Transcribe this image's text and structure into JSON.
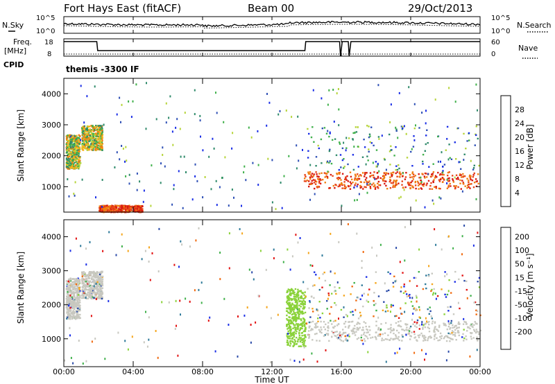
{
  "header": {
    "station": "Fort Hays East (fitACF)",
    "beam": "Beam 00",
    "date": "29/Oct/2013"
  },
  "noise_panel": {
    "left_label": "N.Sky",
    "right_label": "N.Search",
    "y_ticks": [
      "10^5",
      "10^0"
    ]
  },
  "freq_panel": {
    "left_label_1": "Freq.",
    "left_label_2": "[MHz]",
    "right_label": "Nave",
    "left_ticks": [
      "18",
      "8"
    ],
    "right_ticks": [
      "60",
      "0"
    ],
    "cpid_label": "CPID",
    "cpid_value": "themis -3300 IF"
  },
  "colors": {
    "power_scale": [
      "#1a2ee6",
      "#2e4fb5",
      "#2f8a6a",
      "#3fb04a",
      "#b6d43a",
      "#f5b51a",
      "#f07f12",
      "#e8471a",
      "#d81a12"
    ],
    "velocity_scale": [
      "#e21212",
      "#f06a10",
      "#f5a51a",
      "#8ad23a",
      "#c8c8c0",
      "#c8c8c0",
      "#3fb04a",
      "#2e7a9a",
      "#2a4aa8",
      "#1a2ee6"
    ]
  },
  "chart_data": [
    {
      "type": "heatmap",
      "name": "power",
      "ylabel": "Slant Range [km]",
      "xlabel": "",
      "x_ticks": [
        "00:00",
        "04:00",
        "08:00",
        "12:00",
        "16:00",
        "20:00",
        "00:00"
      ],
      "y_ticks": [
        1000,
        2000,
        3000,
        4000
      ],
      "ylim": [
        180,
        4500
      ],
      "colorbar_label": "Power [dB]",
      "colorbar_ticks": [
        4,
        8,
        12,
        16,
        20,
        24,
        28
      ],
      "regions": [
        {
          "t0": 0.1,
          "t1": 0.9,
          "r0": 1600,
          "r1": 2700,
          "level": "mid"
        },
        {
          "t0": 1.0,
          "t1": 2.2,
          "r0": 2200,
          "r1": 3000,
          "level": "mid"
        },
        {
          "t0": 2.0,
          "t1": 4.5,
          "r0": 200,
          "r1": 420,
          "level": "high"
        },
        {
          "t0": 13.8,
          "t1": 24.0,
          "r0": 950,
          "r1": 1500,
          "level": "high"
        },
        {
          "t0": 14.0,
          "t1": 24.0,
          "r0": 1500,
          "r1": 3000,
          "level": "scatter"
        }
      ]
    },
    {
      "type": "heatmap",
      "name": "velocity",
      "ylabel": "Slant Range [km]",
      "xlabel": "Time UT",
      "x_ticks": [
        "00:00",
        "04:00",
        "08:00",
        "12:00",
        "16:00",
        "20:00",
        "00:00"
      ],
      "y_ticks": [
        1000,
        2000,
        3000,
        4000
      ],
      "ylim": [
        180,
        4500
      ],
      "colorbar_label": "Velocity [m s⁻¹]",
      "colorbar_ticks": [
        200,
        100,
        50,
        15,
        -15,
        -50,
        -100,
        -200
      ],
      "regions": [
        {
          "t0": 0.1,
          "t1": 0.9,
          "r0": 1600,
          "r1": 2800,
          "level": "ground"
        },
        {
          "t0": 1.0,
          "t1": 2.2,
          "r0": 2200,
          "r1": 3000,
          "level": "ground"
        },
        {
          "t0": 12.8,
          "t1": 13.9,
          "r0": 800,
          "r1": 2500,
          "level": "green"
        },
        {
          "t0": 14.0,
          "t1": 24.0,
          "r0": 950,
          "r1": 1550,
          "level": "ground"
        },
        {
          "t0": 14.0,
          "t1": 24.0,
          "r0": 1550,
          "r1": 3000,
          "level": "scatter"
        }
      ]
    }
  ]
}
